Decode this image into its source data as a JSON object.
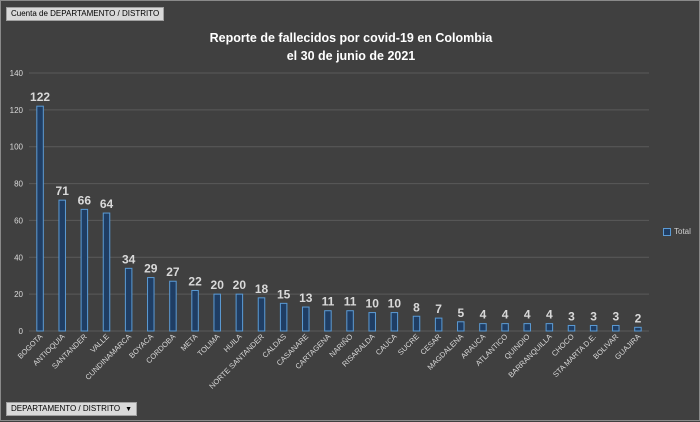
{
  "pivot": {
    "values_field": "Cuenta de DEPARTAMENTO / DISTRITO",
    "axis_field": "DEPARTAMENTO / DISTRITO",
    "axis_field_arrow": "▼"
  },
  "colors": {
    "bar_fill": "#1f3d63",
    "bar_stroke": "#5b9bd5",
    "gridline": "#5a5a5a",
    "background": "#404040",
    "text": "#d9d9d9"
  },
  "chart_data": {
    "type": "bar",
    "title_line1": "Reporte de fallecidos por covid-19 en Colombia",
    "title_line2": "el 30 de junio de 2021",
    "xlabel": "",
    "ylabel": "",
    "ylim": [
      0,
      140
    ],
    "yticks": [
      0,
      20,
      40,
      60,
      80,
      100,
      120,
      140
    ],
    "grid": true,
    "legend_position": "right",
    "categories": [
      "BOGOTA",
      "ANTIOQUIA",
      "SANTANDER",
      "VALLE",
      "CUNDINAMARCA",
      "BOYACA",
      "CORDOBA",
      "META",
      "TOLIMA",
      "HUILA",
      "NORTE SANTANDER",
      "CALDAS",
      "CASANARE",
      "CARTAGENA",
      "NARIÑO",
      "RISARALDA",
      "CAUCA",
      "SUCRE",
      "CESAR",
      "MAGDALENA",
      "ARAUCA",
      "ATLANTICO",
      "QUINDIO",
      "BARRANQUILLA",
      "CHOCO",
      "STA MARTA D.E.",
      "BOLIVAR",
      "GUAJIRA"
    ],
    "series": [
      {
        "name": "Total",
        "values": [
          122,
          71,
          66,
          64,
          34,
          29,
          27,
          22,
          20,
          20,
          18,
          15,
          13,
          11,
          11,
          10,
          10,
          8,
          7,
          5,
          4,
          4,
          4,
          4,
          3,
          3,
          3,
          2
        ]
      }
    ]
  }
}
